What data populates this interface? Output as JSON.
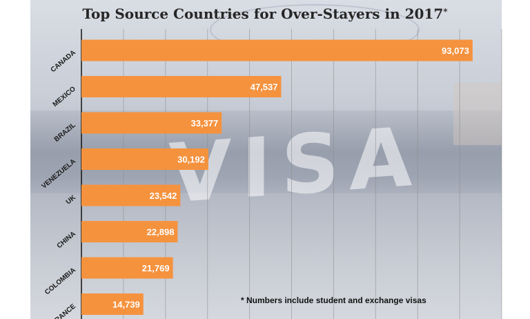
{
  "colors": {
    "bar": "#f5923e",
    "bar_label": "#ffffff",
    "category_label": "#1a1a1a",
    "grid": "#8a8a8a",
    "axis": "#111111"
  },
  "chart_data": {
    "type": "bar",
    "orientation": "horizontal",
    "title": "Top Source Countries for Over-Stayers in 2017",
    "title_marker": "*",
    "xlabel": "",
    "ylabel": "",
    "xlim": [
      0,
      100000
    ],
    "grid": true,
    "legend": "none",
    "categories": [
      "CANADA",
      "MEXICO",
      "BRAZIL",
      "VENEZUELA",
      "UK",
      "CHINA",
      "COLOMBIA",
      "FRANCE"
    ],
    "values": [
      93073,
      47537,
      33377,
      30192,
      23542,
      22898,
      21769,
      14739
    ],
    "value_labels": [
      "93,073",
      "47,537",
      "33,377",
      "30,192",
      "23,542",
      "22,898",
      "21,769",
      "14,739"
    ],
    "footnote": "* Numbers include student and exchange visas"
  }
}
